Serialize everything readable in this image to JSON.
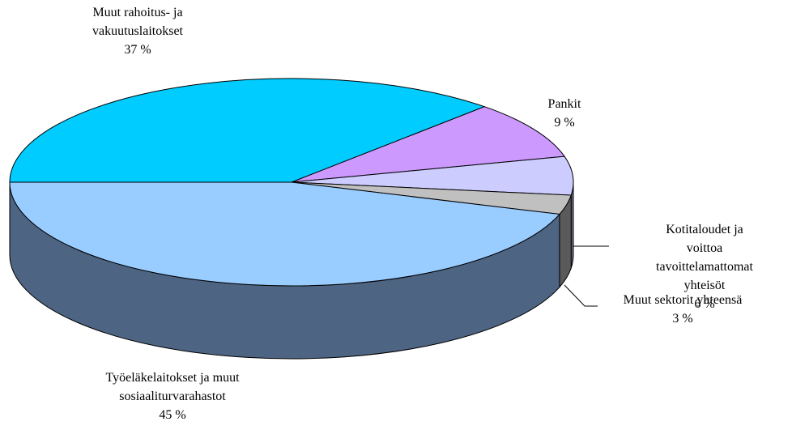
{
  "chart_data": {
    "type": "pie3d",
    "categories": [
      "Muut rahoitus- ja\nvakuutuslaitokset",
      "Pankit",
      "Kotitaloudet ja voittoa\ntavoittelamattomat yhteisöt",
      "Muut sektorit yhteensä",
      "Työeläkelaitokset ja muut\nsosiaaliturvarahastot"
    ],
    "values": [
      37,
      9,
      6,
      3,
      45
    ],
    "value_labels": [
      "37 %",
      "9 %",
      "6 %",
      "3 %",
      "45 %"
    ],
    "colors": [
      "#00ccff",
      "#cc99ff",
      "#ccccff",
      "#c0c0c0",
      "#99ccff"
    ],
    "side_colors": [
      "#007a99",
      "#7a5c99",
      "#6b6b8c",
      "#5a5a5a",
      "#4d6482"
    ]
  }
}
